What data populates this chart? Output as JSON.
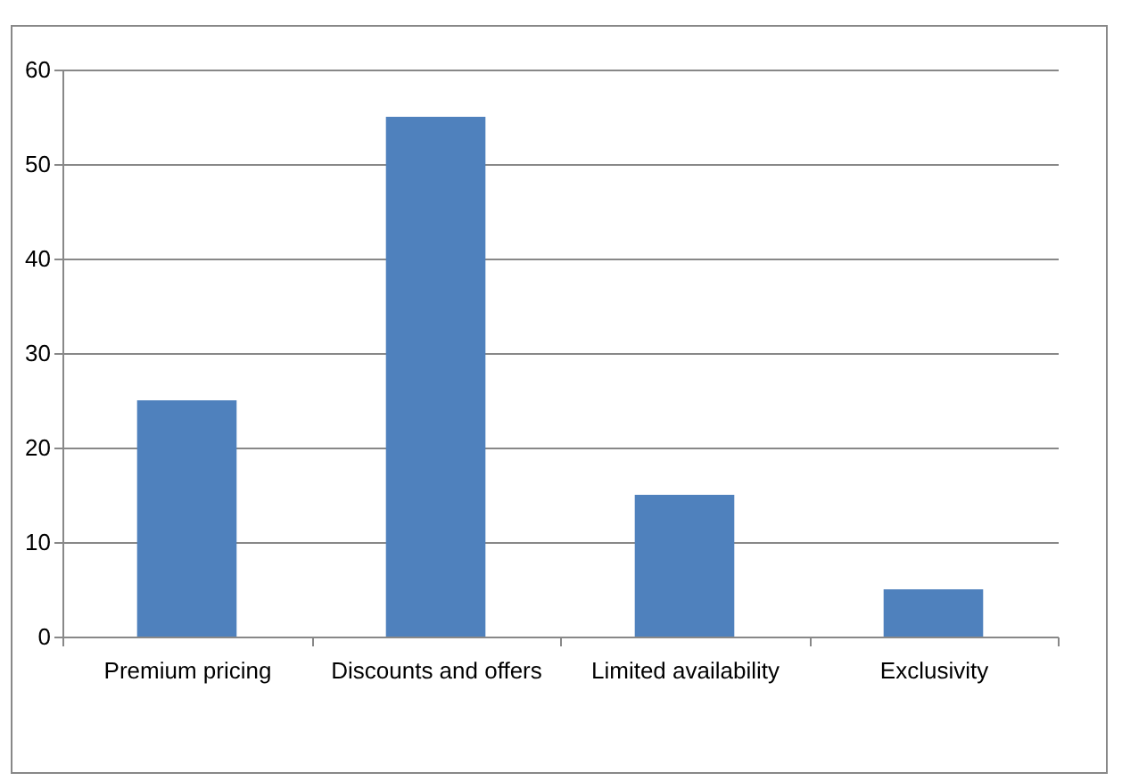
{
  "chart_data": {
    "type": "bar",
    "categories": [
      "Premium pricing",
      "Discounts and offers",
      "Limited availability",
      "Exclusivity"
    ],
    "values": [
      25,
      55,
      15,
      5
    ],
    "color": "#4f81bd",
    "ylim": [
      0,
      60
    ],
    "yticks": [
      0,
      10,
      20,
      30,
      40,
      50,
      60
    ],
    "grid": "y"
  }
}
